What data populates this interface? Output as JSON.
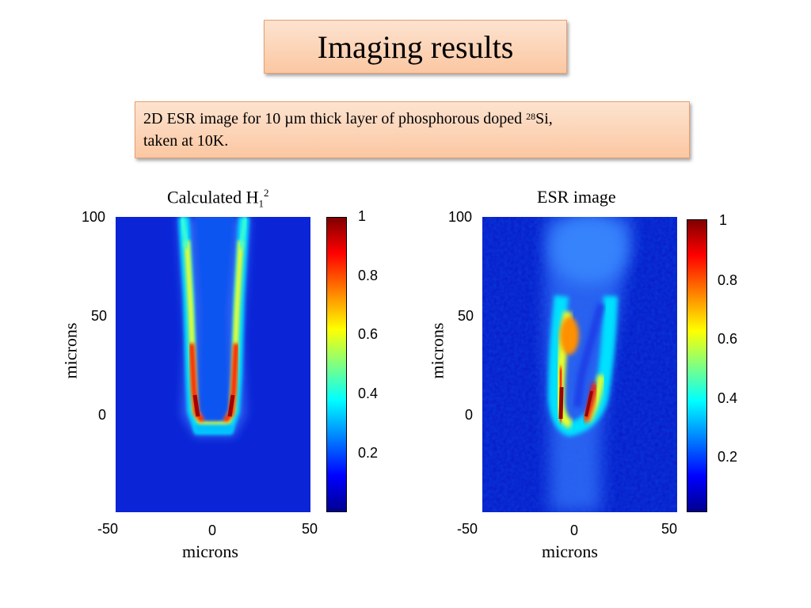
{
  "slide": {
    "title": "Imaging results",
    "caption_line1": "2D ESR image for 10 µm thick layer of phosphorous doped ",
    "caption_sup": "28",
    "caption_tail": "Si,",
    "caption_line2": "taken at 10K."
  },
  "left_panel": {
    "title_main": "Calculated H",
    "title_sub": "1",
    "title_sup": "2",
    "xlabel": "microns",
    "ylabel": "microns",
    "xticks": [
      "-50",
      "0",
      "50"
    ],
    "yticks": [
      "100",
      "50",
      "0"
    ],
    "cbar_ticks": [
      "1",
      "0.8",
      "0.6",
      "0.4",
      "0.2"
    ]
  },
  "right_panel": {
    "title": "ESR image",
    "xlabel": "microns",
    "ylabel": "microns",
    "xticks": [
      "-50",
      "0",
      "50"
    ],
    "yticks": [
      "100",
      "50",
      "0"
    ],
    "cbar_ticks": [
      "1",
      "0.8",
      "0.6",
      "0.4",
      "0.2"
    ]
  },
  "colors": {
    "box_fill_top": "#fde3d0",
    "box_fill_bottom": "#fbc7a2",
    "box_border": "#e8a070",
    "colormap": "jet"
  }
}
